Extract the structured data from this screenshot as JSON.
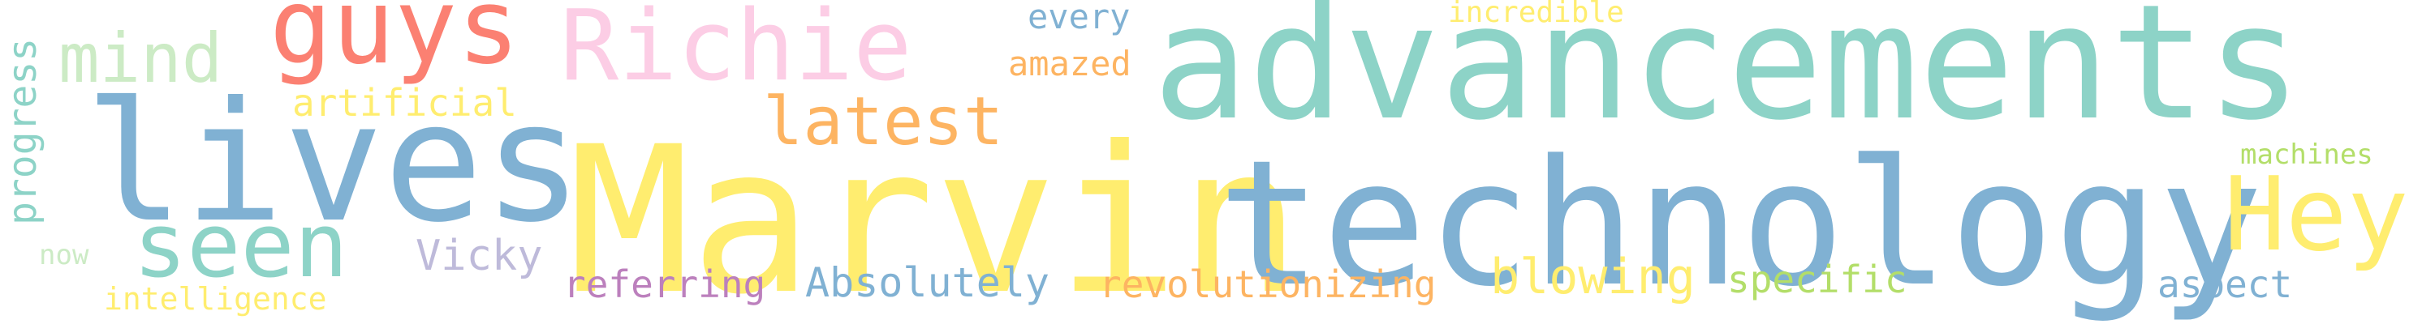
{
  "word_cloud": {
    "background": "#ffffff",
    "words": [
      {
        "text": "advancements",
        "color": "#8dd3c7"
      },
      {
        "text": "Marvin",
        "color": "#ffed6f"
      },
      {
        "text": "technology",
        "color": "#80b1d3"
      },
      {
        "text": "lives",
        "color": "#80b1d3"
      },
      {
        "text": "Richie",
        "color": "#fccde5"
      },
      {
        "text": "guys",
        "color": "#fb8072"
      },
      {
        "text": "Hey",
        "color": "#ffed6f"
      },
      {
        "text": "seen",
        "color": "#8dd3c7"
      },
      {
        "text": "latest",
        "color": "#fdb462"
      },
      {
        "text": "mind",
        "color": "#ccebc5"
      },
      {
        "text": "blowing",
        "color": "#ffed6f"
      },
      {
        "text": "Absolutely",
        "color": "#80b1d3"
      },
      {
        "text": "revolutionizing",
        "color": "#fdb462"
      },
      {
        "text": "referring",
        "color": "#bc80bd"
      },
      {
        "text": "Vicky",
        "color": "#bebada"
      },
      {
        "text": "specific",
        "color": "#b3de69"
      },
      {
        "text": "aspect",
        "color": "#80b1d3"
      },
      {
        "text": "artificial",
        "color": "#ffed6f"
      },
      {
        "text": "amazed",
        "color": "#fdb462"
      },
      {
        "text": "every",
        "color": "#80b1d3"
      },
      {
        "text": "incredible",
        "color": "#ffed6f"
      },
      {
        "text": "machines",
        "color": "#b3de69"
      },
      {
        "text": "intelligence",
        "color": "#ffed6f"
      },
      {
        "text": "now",
        "color": "#ccebc5"
      },
      {
        "text": "progress",
        "color": "#8dd3c7"
      }
    ]
  }
}
